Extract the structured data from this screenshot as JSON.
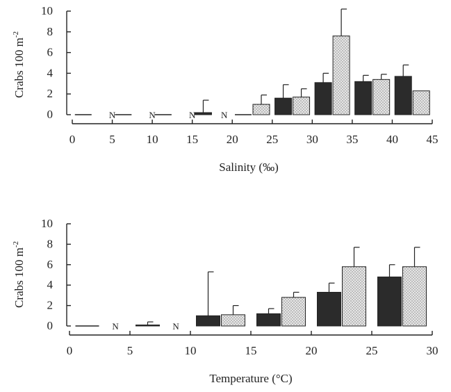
{
  "colors": {
    "dark_bar": "#2b2b2b",
    "stipple_bar": "#e6e6e6",
    "stipple_dot": "#555555",
    "axis": "#222222"
  },
  "chart_data": [
    {
      "type": "bar",
      "xlabel": "Salinity (‰)",
      "ylabel": "Crabs 100 m",
      "ylabel_superscript": "-2",
      "xlim": [
        0,
        45
      ],
      "ylim": [
        0,
        10
      ],
      "xticks": [
        "0",
        "5",
        "10",
        "15",
        "20",
        "25",
        "30",
        "35",
        "40",
        "45"
      ],
      "yticks": [
        "0",
        "2",
        "4",
        "6",
        "8",
        "10"
      ],
      "grid": false,
      "bin_centers": [
        2.5,
        7.5,
        12.5,
        17.5,
        22.5,
        27.5,
        32.5,
        37.5,
        42.5
      ],
      "series": [
        {
          "style": "dark",
          "values": [
            0,
            0,
            0,
            0.2,
            0,
            1.6,
            3.1,
            3.2,
            3.7
          ],
          "errors": [
            null,
            null,
            null,
            1.2,
            null,
            1.3,
            0.9,
            0.6,
            1.1
          ]
        },
        {
          "style": "stippled",
          "values": [
            null,
            null,
            null,
            null,
            1.0,
            1.7,
            7.6,
            3.4,
            2.3
          ],
          "errors": [
            null,
            null,
            null,
            null,
            0.9,
            0.8,
            2.6,
            0.5,
            null
          ]
        }
      ],
      "absent_markers": [
        {
          "x": 5,
          "text": "N"
        },
        {
          "x": 10,
          "text": "N"
        },
        {
          "x": 15,
          "text": "N"
        },
        {
          "x": 19,
          "text": "N"
        }
      ]
    },
    {
      "type": "bar",
      "xlabel": "Temperature (°C)",
      "ylabel": "Crabs 100 m",
      "ylabel_superscript": "-2",
      "xlim": [
        0,
        30
      ],
      "ylim": [
        0,
        10
      ],
      "xticks": [
        "0",
        "5",
        "10",
        "15",
        "20",
        "25",
        "30"
      ],
      "yticks": [
        "0",
        "2",
        "4",
        "6",
        "8",
        "10"
      ],
      "grid": false,
      "bin_centers": [
        2.5,
        7.5,
        12.5,
        17.5,
        22.5,
        27.5
      ],
      "series": [
        {
          "style": "dark",
          "values": [
            0,
            0.1,
            1.0,
            1.2,
            3.3,
            4.8
          ],
          "errors": [
            null,
            0.3,
            4.3,
            0.5,
            0.9,
            1.2
          ]
        },
        {
          "style": "stippled",
          "values": [
            null,
            null,
            1.1,
            2.8,
            5.8,
            5.8
          ],
          "errors": [
            null,
            null,
            0.9,
            0.5,
            1.9,
            1.9
          ]
        }
      ],
      "absent_markers": [
        {
          "x": 3.8,
          "text": "N"
        },
        {
          "x": 8.8,
          "text": "N"
        }
      ]
    }
  ]
}
